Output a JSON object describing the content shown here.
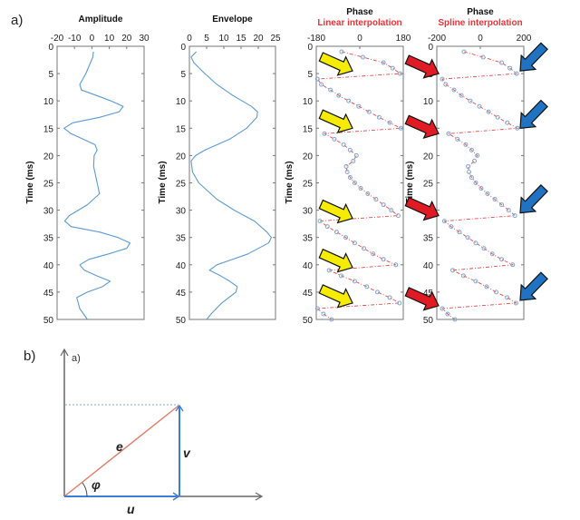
{
  "panel_labels": {
    "a": "a)",
    "b": "b)"
  },
  "colors": {
    "curve": "#5b9bd5",
    "interp_line": "#e8474a",
    "marker": "#7fa7cf",
    "subtitle": "#e8353a",
    "yellow_arrow": "#f5ec00",
    "red_arrow": "#e01b24",
    "blue_arrow": "#1f73c2",
    "e_vector": "#e07b66",
    "uv_vector": "#3b7dd8",
    "axis": "#555555"
  },
  "chart_data": [
    {
      "type": "line",
      "title": "Amplitude",
      "ylabel": "Time (ms)",
      "xlim": [
        -20,
        30
      ],
      "ylim": [
        0,
        50
      ],
      "y_reversed": true,
      "xticks": [
        -20,
        -10,
        0,
        10,
        20,
        30
      ],
      "yticks": [
        0,
        5,
        10,
        15,
        20,
        25,
        30,
        35,
        40,
        45,
        50
      ],
      "series": [
        {
          "points": [
            [
              0.9,
              1
            ],
            [
              0.5,
              2
            ],
            [
              -3.5,
              5
            ],
            [
              -7,
              7
            ],
            [
              -6,
              8
            ],
            [
              2.6,
              9
            ],
            [
              11,
              10
            ],
            [
              18,
              11
            ],
            [
              15.7,
              12
            ],
            [
              4.4,
              13
            ],
            [
              -11,
              14
            ],
            [
              -16,
              15
            ],
            [
              -12,
              16
            ],
            [
              1.8,
              18
            ],
            [
              3,
              19
            ],
            [
              1.3,
              20
            ],
            [
              1,
              22
            ],
            [
              3,
              25
            ],
            [
              4.4,
              27
            ],
            [
              -2.6,
              29
            ],
            [
              -13,
              31
            ],
            [
              -15.6,
              32
            ],
            [
              -12,
              33
            ],
            [
              4.4,
              34
            ],
            [
              15,
              35
            ],
            [
              22,
              36
            ],
            [
              20,
              37
            ],
            [
              9.6,
              38
            ],
            [
              -1.7,
              39
            ],
            [
              -7,
              40
            ],
            [
              -4.3,
              41
            ],
            [
              2.6,
              42
            ],
            [
              10.5,
              43
            ],
            [
              6,
              44
            ],
            [
              -2.6,
              45
            ],
            [
              -8.7,
              46
            ],
            [
              -7,
              48
            ],
            [
              -2.6,
              50
            ]
          ]
        }
      ]
    },
    {
      "type": "line",
      "title": "Envelope",
      "ylabel": "Time (ms)",
      "xlim": [
        0,
        25
      ],
      "ylim": [
        0,
        50
      ],
      "y_reversed": true,
      "xticks": [
        0,
        5,
        10,
        15,
        20,
        25
      ],
      "yticks": [
        0,
        5,
        10,
        15,
        20,
        25,
        30,
        35,
        40,
        45,
        50
      ],
      "series": [
        {
          "points": [
            [
              2,
              1
            ],
            [
              0.5,
              2
            ],
            [
              1.3,
              3
            ],
            [
              4.5,
              5
            ],
            [
              8,
              7
            ],
            [
              12.6,
              9
            ],
            [
              18,
              11
            ],
            [
              19.8,
              12
            ],
            [
              19.6,
              13
            ],
            [
              16.6,
              15
            ],
            [
              11.7,
              17
            ],
            [
              4.5,
              19
            ],
            [
              1.8,
              20
            ],
            [
              0.5,
              21
            ],
            [
              0.9,
              23
            ],
            [
              2.7,
              25
            ],
            [
              8,
              28
            ],
            [
              13,
              30
            ],
            [
              18.9,
              32
            ],
            [
              22.5,
              34
            ],
            [
              23.8,
              35
            ],
            [
              23,
              36
            ],
            [
              17,
              38
            ],
            [
              8,
              40
            ],
            [
              5.8,
              41
            ],
            [
              9,
              42
            ],
            [
              11.7,
              43
            ],
            [
              13.9,
              44
            ],
            [
              13.5,
              45
            ],
            [
              9.4,
              47
            ],
            [
              6.3,
              49
            ],
            [
              5,
              50
            ]
          ]
        }
      ]
    },
    {
      "type": "line",
      "title": "Phase",
      "subtitle": "Linear interpolation",
      "ylabel": "Time (ms)",
      "xlim": [
        -180,
        180
      ],
      "ylim": [
        0,
        50
      ],
      "y_reversed": true,
      "xticks": [
        -180,
        0,
        180
      ],
      "yticks": [
        0,
        5,
        10,
        15,
        20,
        25,
        30,
        35,
        40,
        45,
        50
      ],
      "series": [
        {
          "markers": "circle",
          "line": "dash-dot",
          "points": [
            [
              -75,
              1
            ],
            [
              13,
              2
            ],
            [
              98,
              3
            ],
            [
              136,
              4
            ],
            [
              167,
              5
            ],
            [
              -175,
              6
            ],
            [
              -159,
              7
            ],
            [
              -121,
              8
            ],
            [
              -87,
              9
            ],
            [
              -46,
              10
            ],
            [
              -4,
              11
            ],
            [
              38,
              12
            ],
            [
              80,
              13
            ],
            [
              124,
              14
            ],
            [
              170,
              15
            ],
            [
              -146,
              16
            ],
            [
              -105,
              17
            ],
            [
              -67,
              18
            ],
            [
              -40,
              19
            ],
            [
              -14,
              20
            ],
            [
              -27,
              21
            ],
            [
              -56,
              22
            ],
            [
              -52,
              23
            ],
            [
              -40,
              24
            ],
            [
              -21,
              25
            ],
            [
              4,
              26
            ],
            [
              33,
              27
            ],
            [
              67,
              28
            ],
            [
              98,
              29
            ],
            [
              130,
              30
            ],
            [
              159,
              31
            ],
            [
              -165,
              32
            ],
            [
              -134,
              33
            ],
            [
              -96,
              34
            ],
            [
              -58,
              35
            ],
            [
              -21,
              36
            ],
            [
              17,
              37
            ],
            [
              55,
              38
            ],
            [
              98,
              39
            ],
            [
              149,
              40
            ],
            [
              -127,
              41
            ],
            [
              -77,
              42
            ],
            [
              -21,
              43
            ],
            [
              29,
              44
            ],
            [
              73,
              45
            ],
            [
              124,
              46
            ],
            [
              164,
              47
            ],
            [
              -175,
              48
            ],
            [
              -150,
              49
            ],
            [
              -117,
              50
            ]
          ]
        }
      ],
      "annotations": [
        {
          "type": "arrow",
          "color": "yellow",
          "at_time": [
            4.5,
            15,
            31.5,
            40.5,
            47
          ]
        }
      ]
    },
    {
      "type": "line",
      "title": "Phase",
      "subtitle": "Spline interpolation",
      "ylabel": "Time (ms)",
      "xlim": [
        -200,
        200
      ],
      "ylim": [
        0,
        50
      ],
      "y_reversed": true,
      "xticks": [
        -200,
        0,
        200
      ],
      "yticks": [
        0,
        5,
        10,
        15,
        20,
        25,
        30,
        35,
        40,
        45,
        50
      ],
      "series": [
        {
          "markers": "circle",
          "line": "dash-dot",
          "points": [
            [
              -75,
              1
            ],
            [
              13,
              2
            ],
            [
              98,
              3
            ],
            [
              136,
              4
            ],
            [
              167,
              5
            ],
            [
              -175,
              6
            ],
            [
              -159,
              7
            ],
            [
              -121,
              8
            ],
            [
              -87,
              9
            ],
            [
              -46,
              10
            ],
            [
              -4,
              11
            ],
            [
              38,
              12
            ],
            [
              80,
              13
            ],
            [
              124,
              14
            ],
            [
              170,
              15
            ],
            [
              -146,
              16
            ],
            [
              -105,
              17
            ],
            [
              -67,
              18
            ],
            [
              -40,
              19
            ],
            [
              -14,
              20
            ],
            [
              -27,
              21
            ],
            [
              -56,
              22
            ],
            [
              -52,
              23
            ],
            [
              -40,
              24
            ],
            [
              -21,
              25
            ],
            [
              4,
              26
            ],
            [
              33,
              27
            ],
            [
              67,
              28
            ],
            [
              98,
              29
            ],
            [
              130,
              30
            ],
            [
              159,
              31
            ],
            [
              -165,
              32
            ],
            [
              -134,
              33
            ],
            [
              -96,
              34
            ],
            [
              -58,
              35
            ],
            [
              -21,
              36
            ],
            [
              17,
              37
            ],
            [
              55,
              38
            ],
            [
              98,
              39
            ],
            [
              149,
              40
            ],
            [
              -127,
              41
            ],
            [
              -77,
              42
            ],
            [
              -21,
              43
            ],
            [
              29,
              44
            ],
            [
              73,
              45
            ],
            [
              124,
              46
            ],
            [
              164,
              47
            ],
            [
              -175,
              48
            ],
            [
              -150,
              49
            ],
            [
              -117,
              50
            ]
          ]
        }
      ],
      "annotations": [
        {
          "type": "arrow",
          "color": "red",
          "at_time": [
            5,
            16,
            31,
            47.5
          ]
        },
        {
          "type": "arrow",
          "color": "blue",
          "at_time": [
            4.5,
            15,
            30.5,
            46.5
          ]
        }
      ]
    }
  ],
  "diagram": {
    "axis_label": "a)",
    "vectors": {
      "e": "e",
      "u": "u",
      "v": "v"
    },
    "angle_label": "φ"
  }
}
